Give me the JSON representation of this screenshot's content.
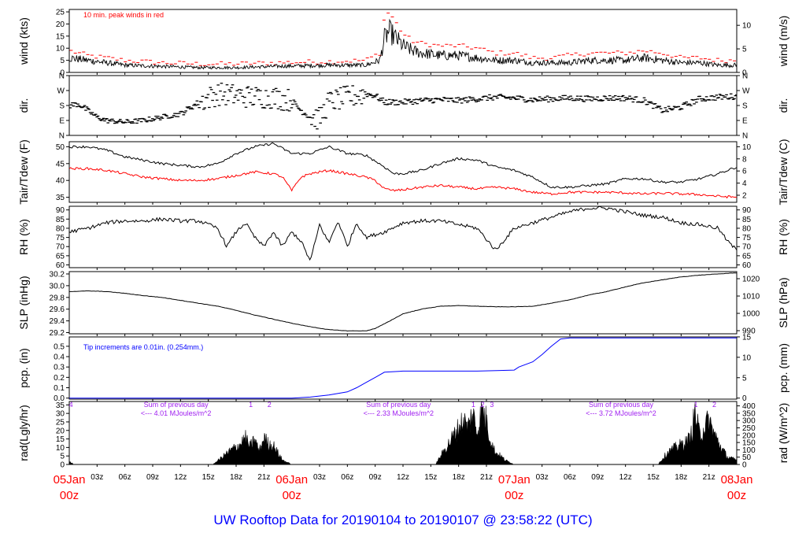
{
  "title": "UW Rooftop Data for 20190104  to  20190107 @ 23:58:22  (UTC)",
  "colors": {
    "frame": "#000000",
    "red": "#ff0000",
    "blue": "#0000ff",
    "purple": "#a020f0",
    "title": "#0000ff"
  },
  "time_axis": {
    "hour_ticks": [
      "03z",
      "06z",
      "09z",
      "12z",
      "15z",
      "18z",
      "21z",
      "03z",
      "06z",
      "09z",
      "12z",
      "15z",
      "18z",
      "21z",
      "03z",
      "06z",
      "09z",
      "12z",
      "15z",
      "18z",
      "21z"
    ],
    "hour_tick_hours": [
      3,
      6,
      9,
      12,
      15,
      18,
      21,
      27,
      30,
      33,
      36,
      39,
      42,
      45,
      51,
      54,
      57,
      60,
      63,
      66,
      69
    ],
    "day_ticks": [
      {
        "hour": 0,
        "day": "05Jan",
        "z": "00z"
      },
      {
        "hour": 24,
        "day": "06Jan",
        "z": "00z"
      },
      {
        "hour": 48,
        "day": "07Jan",
        "z": "00z"
      },
      {
        "hour": 72,
        "day": "08Jan",
        "z": "00z"
      }
    ]
  },
  "chart_data": [
    {
      "type": "line",
      "id": "wind",
      "ylabel": "wind (kts)",
      "ylabel_right": "wind (m/s)",
      "annotation": "10 min. peak winds in red",
      "ylim": [
        0,
        26
      ],
      "yticks": [
        "0",
        "5",
        "10",
        "15",
        "20",
        "25"
      ],
      "ylim_right": [
        0,
        13.37
      ],
      "yticks_right": [
        "0",
        "5",
        "10"
      ],
      "series": [
        {
          "role": "mean",
          "x": [
            0,
            2,
            4,
            6,
            10,
            14,
            18,
            22,
            28,
            32,
            33.5,
            34,
            34.5,
            35,
            36,
            37,
            38,
            40,
            42,
            44,
            46,
            48,
            50,
            52,
            54,
            56,
            58,
            60,
            62,
            64,
            66,
            68,
            70,
            72
          ],
          "y": [
            6,
            5,
            4,
            3,
            2.5,
            2,
            2,
            2.5,
            3,
            3,
            5,
            14,
            17,
            15,
            11,
            9,
            8,
            7,
            7,
            6,
            5,
            5,
            4,
            4,
            4,
            5,
            5,
            5,
            6,
            5,
            4,
            4,
            3,
            3
          ]
        },
        {
          "role": "peak",
          "x": [
            0,
            2,
            4,
            6,
            10,
            14,
            18,
            22,
            28,
            32,
            33.5,
            34,
            34.5,
            35,
            36,
            37,
            38,
            40,
            42,
            44,
            46,
            48,
            50,
            52,
            54,
            56,
            58,
            60,
            62,
            64,
            66,
            68,
            70,
            72
          ],
          "y": [
            9,
            7,
            6,
            5,
            4,
            3.5,
            3.5,
            4,
            4.5,
            5,
            8,
            23,
            25,
            22,
            16,
            13,
            12,
            11,
            11,
            10,
            8,
            8,
            6,
            6,
            7,
            8,
            8,
            8,
            9,
            8,
            6,
            6,
            5,
            5
          ]
        }
      ]
    },
    {
      "type": "scatter",
      "id": "dir",
      "ylabel": "dir.",
      "ylabel_right": "dir.",
      "ylim": [
        0,
        360
      ],
      "yticks": [
        "N",
        "E",
        "S",
        "W",
        "N"
      ],
      "yticks_right": [
        "N",
        "E",
        "S",
        "W",
        "N"
      ],
      "series": [
        {
          "x": [
            0,
            1,
            2,
            3,
            4,
            6,
            8,
            10,
            12,
            14,
            16,
            18,
            20,
            22,
            24,
            25,
            26,
            27,
            28,
            30,
            32,
            33,
            34,
            36,
            38,
            40,
            42,
            44,
            46,
            48,
            50,
            52,
            54,
            56,
            58,
            60,
            62,
            64,
            66,
            68,
            70,
            72
          ],
          "y": [
            180,
            190,
            150,
            110,
            90,
            80,
            90,
            110,
            130,
            200,
            250,
            240,
            230,
            230,
            210,
            150,
            110,
            100,
            200,
            230,
            250,
            240,
            200,
            200,
            210,
            215,
            210,
            220,
            230,
            225,
            215,
            220,
            225,
            220,
            225,
            225,
            210,
            150,
            170,
            220,
            230,
            235
          ]
        }
      ]
    },
    {
      "type": "line",
      "id": "temp",
      "ylabel": "Tair/Tdew (F)",
      "ylabel_right": "Tair/Tdew (C)",
      "ylim": [
        33.5,
        51.5
      ],
      "yticks": [
        "35",
        "40",
        "45",
        "50"
      ],
      "ylim_right": [
        0.83,
        10.83
      ],
      "yticks_right": [
        "2",
        "4",
        "6",
        "8",
        "10"
      ],
      "series": [
        {
          "role": "air",
          "x": [
            0,
            2,
            4,
            6,
            8,
            10,
            12,
            14,
            16,
            18,
            20,
            22,
            24,
            26,
            28,
            30,
            32,
            34,
            35,
            36,
            38,
            40,
            42,
            44,
            46,
            48,
            50,
            52,
            54,
            56,
            58,
            60,
            62,
            64,
            66,
            68,
            70,
            72
          ],
          "y": [
            50,
            50,
            49,
            47,
            46,
            45,
            44.5,
            44,
            45,
            48,
            50,
            51,
            48,
            48,
            50,
            48,
            47.5,
            44,
            42,
            42,
            43,
            45,
            46.5,
            46,
            44,
            43,
            41,
            38,
            38,
            38.5,
            39,
            40.5,
            40.5,
            39.5,
            39.5,
            40.5,
            42,
            44
          ]
        },
        {
          "role": "dew",
          "x": [
            0,
            2,
            4,
            6,
            8,
            10,
            12,
            14,
            16,
            18,
            20,
            22,
            23,
            24,
            25,
            26,
            28,
            30,
            32,
            33,
            34,
            35,
            36,
            38,
            40,
            42,
            44,
            46,
            48,
            50,
            52,
            54,
            56,
            58,
            60,
            62,
            64,
            66,
            68,
            70,
            72
          ],
          "y": [
            43.5,
            43.5,
            43,
            42,
            41,
            40.5,
            40,
            40,
            40.5,
            41.5,
            42.5,
            42,
            41,
            37,
            41,
            42,
            43,
            42,
            41,
            40,
            37.5,
            37,
            37.2,
            38,
            38.5,
            38,
            37.5,
            38,
            37.5,
            36.5,
            36,
            36.5,
            36.5,
            36.5,
            36.3,
            36,
            36.2,
            36,
            35.8,
            35.3,
            35
          ]
        }
      ]
    },
    {
      "type": "line",
      "id": "rh",
      "ylabel": "RH (%)",
      "ylabel_right": "RH (%)",
      "ylim": [
        58.5,
        92
      ],
      "yticks": [
        "60",
        "65",
        "70",
        "75",
        "80",
        "85",
        "90"
      ],
      "yticks_right": [
        "60",
        "65",
        "70",
        "75",
        "80",
        "85",
        "90"
      ],
      "series": [
        {
          "x": [
            0,
            2,
            4,
            6,
            8,
            10,
            12,
            14,
            16,
            17,
            18,
            19,
            20,
            21,
            22,
            23,
            24,
            25,
            26,
            27,
            28,
            29,
            30,
            31,
            32,
            34,
            36,
            38,
            40,
            42,
            44,
            46,
            48,
            50,
            52,
            54,
            56,
            58,
            60,
            62,
            64,
            66,
            68,
            70,
            71,
            72
          ],
          "y": [
            78,
            80,
            83,
            84,
            84,
            85,
            84,
            84,
            80,
            70,
            78,
            83,
            75,
            70,
            78,
            70,
            78,
            73,
            62,
            82,
            72,
            84,
            70,
            83,
            75,
            78,
            83,
            84,
            84,
            82,
            80,
            68,
            80,
            83,
            86,
            89,
            91,
            91,
            89,
            87,
            86,
            83,
            82,
            80,
            73,
            68
          ]
        }
      ]
    },
    {
      "type": "line",
      "id": "slp",
      "ylabel": "SLP (inHg)",
      "ylabel_right": "SLP (hPa)",
      "ylim": [
        29.18,
        30.24
      ],
      "yticks": [
        "29.2",
        "29.4",
        "29.6",
        "29.8",
        "30.0",
        "30.2"
      ],
      "ylim_right": [
        988.2,
        1024.1
      ],
      "yticks_right": [
        "990",
        "1000",
        "1010",
        "1020"
      ],
      "series": [
        {
          "x": [
            0,
            2,
            4,
            6,
            8,
            10,
            12,
            14,
            16,
            18,
            20,
            22,
            24,
            26,
            28,
            30,
            32,
            33,
            34,
            36,
            38,
            40,
            42,
            44,
            46,
            48,
            50,
            52,
            54,
            56,
            58,
            60,
            62,
            64,
            66,
            68,
            70,
            72
          ],
          "y": [
            29.9,
            29.91,
            29.9,
            29.87,
            29.83,
            29.8,
            29.75,
            29.7,
            29.65,
            29.58,
            29.5,
            29.43,
            29.36,
            29.3,
            29.25,
            29.23,
            29.23,
            29.27,
            29.35,
            29.52,
            29.6,
            29.65,
            29.66,
            29.65,
            29.64,
            29.64,
            29.65,
            29.7,
            29.76,
            29.84,
            29.9,
            29.98,
            30.05,
            30.1,
            30.15,
            30.18,
            30.2,
            30.22
          ]
        }
      ]
    },
    {
      "type": "area",
      "id": "pcp",
      "ylabel": "pcp. (in)",
      "ylabel_right": "pcp. (mm)",
      "annotation": "Tip increments are 0.01in. (0.254mm.)",
      "ylim": [
        -0.01,
        0.59
      ],
      "yticks": [
        "0.0",
        "0.1",
        "0.2",
        "0.3",
        "0.4",
        "0.5"
      ],
      "ylim_right": [
        -0.254,
        14.99
      ],
      "yticks_right": [
        "0",
        "5",
        "10",
        "15"
      ],
      "series": [
        {
          "x": [
            0,
            24,
            26,
            28,
            30,
            31,
            32,
            33,
            34,
            36,
            40,
            44,
            48,
            48.5,
            50,
            51,
            52,
            53,
            54,
            72
          ],
          "y": [
            0,
            0,
            0.01,
            0.03,
            0.06,
            0.1,
            0.15,
            0.2,
            0.25,
            0.26,
            0.26,
            0.26,
            0.27,
            0.3,
            0.35,
            0.42,
            0.5,
            0.57,
            0.58,
            0.58
          ]
        }
      ]
    },
    {
      "type": "area",
      "id": "rad",
      "ylabel": "rad(Lgly/hr)",
      "ylabel_right": "rad (W/m^2)",
      "ylim": [
        0,
        37
      ],
      "yticks": [
        "0",
        "5",
        "10",
        "15",
        "20",
        "25",
        "30",
        "35"
      ],
      "ylim_right": [
        0,
        429.9
      ],
      "yticks_right": [
        "0",
        "50",
        "100",
        "150",
        "200",
        "250",
        "300",
        "350",
        "400"
      ],
      "sum_labels": [
        {
          "hour": 6,
          "line1": "Sum of previous day",
          "line2": "<--- 4.01 MJoules/m^2"
        },
        {
          "hour": 30,
          "line1": "Sum of previous day",
          "line2": "<--- 2.33 MJoules/m^2"
        },
        {
          "hour": 54,
          "line1": "Sum of previous day",
          "line2": "<--- 3.72 MJoules/m^2"
        }
      ],
      "markers": [
        {
          "hour": 0.1,
          "label": "4"
        },
        {
          "hour": 19.5,
          "label": "1"
        },
        {
          "hour": 21.5,
          "label": "2"
        },
        {
          "hour": 43.5,
          "label": "1"
        },
        {
          "hour": 44.5,
          "label": "2"
        },
        {
          "hour": 45.5,
          "label": "3"
        },
        {
          "hour": 67.5,
          "label": "1"
        },
        {
          "hour": 69.5,
          "label": "2"
        }
      ],
      "series": [
        {
          "x": [
            0,
            0.5,
            1,
            15.5,
            16.5,
            17.5,
            18.5,
            19,
            19.5,
            20,
            20.5,
            21,
            21.5,
            22,
            22.5,
            23,
            24,
            39.5,
            40.5,
            41.5,
            42.5,
            43,
            43.5,
            44,
            44.5,
            45,
            45.5,
            46,
            46.5,
            47,
            48,
            63.5,
            64.5,
            65.5,
            66.5,
            67,
            67.5,
            68,
            68.5,
            69,
            69.5,
            70,
            70.5,
            71,
            72
          ],
          "y": [
            2,
            0,
            0,
            0,
            5,
            10,
            14,
            18,
            12,
            17,
            9,
            18,
            14,
            13,
            8,
            3,
            0,
            0,
            10,
            20,
            30,
            25,
            35,
            22,
            37,
            30,
            15,
            8,
            6,
            3,
            0,
            0,
            8,
            12,
            15,
            18,
            35,
            20,
            25,
            30,
            22,
            15,
            10,
            5,
            3
          ]
        }
      ]
    }
  ]
}
